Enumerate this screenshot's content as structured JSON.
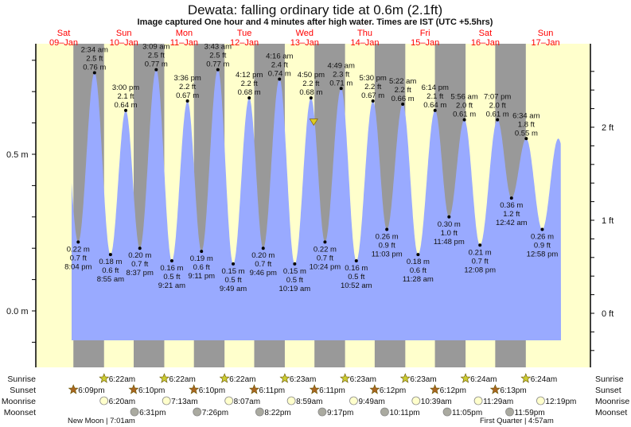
{
  "title": "Dewata: falling  ordinary tide at 0.6m (2.1ft)",
  "subtitle": "Image captured One hour and 4 minutes after high water. Times are IST (UTC +5.5hrs)",
  "days": [
    {
      "dow": "Sat",
      "date": "09–Jan"
    },
    {
      "dow": "Sun",
      "date": "10–Jan"
    },
    {
      "dow": "Mon",
      "date": "11–Jan"
    },
    {
      "dow": "Tue",
      "date": "12–Jan"
    },
    {
      "dow": "Wed",
      "date": "13–Jan"
    },
    {
      "dow": "Thu",
      "date": "14–Jan"
    },
    {
      "dow": "Fri",
      "date": "15–Jan"
    },
    {
      "dow": "Sat",
      "date": "16–Jan"
    },
    {
      "dow": "Sun",
      "date": "17–Jan"
    }
  ],
  "colors": {
    "day": "#ffffcc",
    "night": "#999999",
    "water": "#99aaff",
    "date": "#ff0000",
    "sunrise": "#cccc33",
    "sunset": "#aa6622",
    "moonrise": "#ffffcc",
    "moonset": "#aaaaa0"
  },
  "chart_data": {
    "type": "area",
    "title": "Dewata: falling  ordinary tide at 0.6m (2.1ft)",
    "time_unit": "days since Sat 09-Jan 00:00 IST",
    "ylim_m": [
      -0.09,
      0.84
    ],
    "left_axis": {
      "unit": "m",
      "labels": [
        "0.5 m",
        "0.0 m"
      ],
      "values": [
        0.5,
        0.0
      ]
    },
    "right_axis": {
      "unit": "ft",
      "labels": [
        "2 ft",
        "1 ft",
        "0 ft"
      ],
      "values": [
        2,
        1,
        0
      ]
    },
    "current": {
      "t": 4.746,
      "m": 0.6
    },
    "extremes": [
      {
        "type": "low",
        "t": 0.836,
        "m": 0.22,
        "m_label": "0.22 m",
        "ft": "0.7 ft",
        "time": "8:04 pm"
      },
      {
        "type": "high",
        "t": 1.107,
        "m": 0.76,
        "m_label": "0.76 m",
        "ft": "2.5 ft",
        "time": "2:34 am"
      },
      {
        "type": "low",
        "t": 1.372,
        "m": 0.18,
        "m_label": "0.18 m",
        "ft": "0.6 ft",
        "time": "8:55 am"
      },
      {
        "type": "high",
        "t": 1.625,
        "m": 0.64,
        "m_label": "0.64 m",
        "ft": "2.1 ft",
        "time": "3:00 pm"
      },
      {
        "type": "low",
        "t": 1.859,
        "m": 0.2,
        "m_label": "0.20 m",
        "ft": "0.7 ft",
        "time": "8:37 pm"
      },
      {
        "type": "high",
        "t": 2.131,
        "m": 0.77,
        "m_label": "0.77 m",
        "ft": "2.5 ft",
        "time": "3:09 am"
      },
      {
        "type": "low",
        "t": 2.39,
        "m": 0.16,
        "m_label": "0.16 m",
        "ft": "0.5 ft",
        "time": "9:21 am"
      },
      {
        "type": "high",
        "t": 2.65,
        "m": 0.67,
        "m_label": "0.67 m",
        "ft": "2.2 ft",
        "time": "3:36 pm"
      },
      {
        "type": "low",
        "t": 2.883,
        "m": 0.19,
        "m_label": "0.19 m",
        "ft": "0.6 ft",
        "time": "9:11 pm"
      },
      {
        "type": "high",
        "t": 3.155,
        "m": 0.77,
        "m_label": "0.77 m",
        "ft": "2.5 ft",
        "time": "3:43 am"
      },
      {
        "type": "low",
        "t": 3.409,
        "m": 0.15,
        "m_label": "0.15 m",
        "ft": "0.5 ft",
        "time": "9:49 am"
      },
      {
        "type": "high",
        "t": 3.675,
        "m": 0.68,
        "m_label": "0.68 m",
        "ft": "2.2 ft",
        "time": "4:12 pm"
      },
      {
        "type": "low",
        "t": 3.907,
        "m": 0.2,
        "m_label": "0.20 m",
        "ft": "0.7 ft",
        "time": "9:46 pm"
      },
      {
        "type": "high",
        "t": 4.178,
        "m": 0.74,
        "m_label": "0.74 m",
        "ft": "2.4 ft",
        "time": "4:16 am"
      },
      {
        "type": "low",
        "t": 4.43,
        "m": 0.15,
        "m_label": "0.15 m",
        "ft": "0.5 ft",
        "time": "10:19 am"
      },
      {
        "type": "high",
        "t": 4.701,
        "m": 0.68,
        "m_label": "0.68 m",
        "ft": "2.2 ft",
        "time": "4:50 pm"
      },
      {
        "type": "low",
        "t": 4.933,
        "m": 0.22,
        "m_label": "0.22 m",
        "ft": "0.7 ft",
        "time": "10:24 pm"
      },
      {
        "type": "high",
        "t": 5.201,
        "m": 0.71,
        "m_label": "0.71 m",
        "ft": "2.3 ft",
        "time": "4:49 am"
      },
      {
        "type": "low",
        "t": 5.453,
        "m": 0.16,
        "m_label": "0.16 m",
        "ft": "0.5 ft",
        "time": "10:52 am"
      },
      {
        "type": "high",
        "t": 5.729,
        "m": 0.67,
        "m_label": "0.67 m",
        "ft": "2.2 ft",
        "time": "5:30 pm"
      },
      {
        "type": "low",
        "t": 5.96,
        "m": 0.26,
        "m_label": "0.26 m",
        "ft": "0.9 ft",
        "time": "11:03 pm"
      },
      {
        "type": "high",
        "t": 6.224,
        "m": 0.66,
        "m_label": "0.66 m",
        "ft": "2.2 ft",
        "time": "5:22 am"
      },
      {
        "type": "low",
        "t": 6.478,
        "m": 0.18,
        "m_label": "0.18 m",
        "ft": "0.6 ft",
        "time": "11:28 am"
      },
      {
        "type": "high",
        "t": 6.76,
        "m": 0.64,
        "m_label": "0.64 m",
        "ft": "2.1 ft",
        "time": "6:14 pm"
      },
      {
        "type": "low",
        "t": 6.992,
        "m": 0.3,
        "m_label": "0.30 m",
        "ft": "1.0 ft",
        "time": "11:48 pm"
      },
      {
        "type": "high",
        "t": 7.247,
        "m": 0.61,
        "m_label": "0.61 m",
        "ft": "2.0 ft",
        "time": "5:56 am"
      },
      {
        "type": "low",
        "t": 7.506,
        "m": 0.21,
        "m_label": "0.21 m",
        "ft": "0.7 ft",
        "time": "12:08 pm"
      },
      {
        "type": "high",
        "t": 7.796,
        "m": 0.61,
        "m_label": "0.61 m",
        "ft": "2.0 ft",
        "time": "7:07 pm"
      },
      {
        "type": "low",
        "t": 8.029,
        "m": 0.36,
        "m_label": "0.36 m",
        "ft": "1.2 ft",
        "time": "12:42 am"
      },
      {
        "type": "high",
        "t": 8.274,
        "m": 0.55,
        "m_label": "0.55 m",
        "ft": "1.8 ft",
        "time": "6:34 am"
      },
      {
        "type": "low",
        "t": 8.54,
        "m": 0.26,
        "m_label": "0.26 m",
        "ft": "0.9 ft",
        "time": "12:58 pm"
      }
    ]
  },
  "rows": {
    "labels": {
      "sunrise": "Sunrise",
      "sunset": "Sunset",
      "moonrise": "Moonrise",
      "moonset": "Moonset"
    },
    "sunrise": [
      {
        "t": 1.265,
        "time": "6:22am"
      },
      {
        "t": 2.265,
        "time": "6:22am"
      },
      {
        "t": 3.265,
        "time": "6:22am"
      },
      {
        "t": 4.266,
        "time": "6:23am"
      },
      {
        "t": 5.266,
        "time": "6:23am"
      },
      {
        "t": 6.266,
        "time": "6:23am"
      },
      {
        "t": 7.267,
        "time": "6:24am"
      },
      {
        "t": 8.267,
        "time": "6:24am"
      }
    ],
    "sunset": [
      {
        "t": 0.756,
        "time": "6:09pm"
      },
      {
        "t": 1.757,
        "time": "6:10pm"
      },
      {
        "t": 2.757,
        "time": "6:10pm"
      },
      {
        "t": 3.758,
        "time": "6:11pm"
      },
      {
        "t": 4.758,
        "time": "6:11pm"
      },
      {
        "t": 5.758,
        "time": "6:12pm"
      },
      {
        "t": 6.758,
        "time": "6:12pm"
      },
      {
        "t": 7.759,
        "time": "6:13pm"
      }
    ],
    "moonrise": [
      {
        "t": 1.264,
        "time": "6:20am"
      },
      {
        "t": 2.301,
        "time": "7:13am"
      },
      {
        "t": 3.338,
        "time": "8:07am"
      },
      {
        "t": 4.374,
        "time": "8:59am"
      },
      {
        "t": 5.409,
        "time": "9:49am"
      },
      {
        "t": 6.444,
        "time": "10:39am"
      },
      {
        "t": 7.478,
        "time": "11:29am"
      },
      {
        "t": 8.513,
        "time": "12:19pm"
      }
    ],
    "moonset": [
      {
        "t": 1.771,
        "time": "6:31pm"
      },
      {
        "t": 2.81,
        "time": "7:26pm"
      },
      {
        "t": 3.849,
        "time": "8:22pm"
      },
      {
        "t": 4.887,
        "time": "9:17pm"
      },
      {
        "t": 5.924,
        "time": "10:11pm"
      },
      {
        "t": 6.962,
        "time": "11:05pm"
      },
      {
        "t": 7.999,
        "time": "11:59pm"
      }
    ],
    "phases": [
      {
        "label": "New Moon | 7:01am"
      },
      {
        "label": "First Quarter | 4:57am"
      }
    ]
  }
}
